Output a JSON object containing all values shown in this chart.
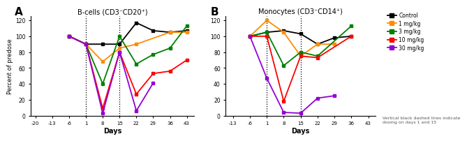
{
  "panel_A": {
    "title": "B-cells (CD3⁻CD20⁺)",
    "xlabel": "Days",
    "ylabel": "Percent of predose",
    "xticks": [
      -20,
      -13,
      -6,
      1,
      8,
      15,
      22,
      29,
      36,
      43
    ],
    "xlim": [
      -22,
      46
    ],
    "ylim": [
      0,
      125
    ],
    "yticks": [
      0,
      20,
      40,
      60,
      80,
      100,
      120
    ],
    "vlines": [
      1,
      15
    ],
    "series": {
      "Control": {
        "color": "#000000",
        "x": [
          -6,
          1,
          8,
          15,
          22,
          29,
          36,
          43
        ],
        "y": [
          100,
          90,
          90,
          90,
          117,
          107,
          105,
          107
        ]
      },
      "1 mg/kg": {
        "color": "#FF8C00",
        "x": [
          -6,
          1,
          8,
          15,
          22,
          36,
          43
        ],
        "y": [
          100,
          90,
          68,
          85,
          90,
          105,
          105
        ]
      },
      "3 mg/kg": {
        "color": "#008000",
        "x": [
          -6,
          1,
          8,
          15,
          22,
          29,
          36,
          43
        ],
        "y": [
          100,
          90,
          40,
          100,
          65,
          77,
          85,
          113
        ]
      },
      "10 mg/kg": {
        "color": "#FF0000",
        "x": [
          -6,
          1,
          8,
          15,
          22,
          29,
          36,
          43
        ],
        "y": [
          100,
          90,
          9,
          80,
          27,
          53,
          56,
          70
        ]
      },
      "30 mg/kg": {
        "color": "#9400D3",
        "x": [
          -6,
          1,
          8,
          15,
          22,
          29
        ],
        "y": [
          100,
          90,
          3,
          80,
          6,
          41
        ]
      }
    }
  },
  "panel_B": {
    "title": "Monocytes (CD3⁻CD14⁺)",
    "xlabel": "Days",
    "ylabel": "",
    "xticks": [
      -13,
      -6,
      1,
      8,
      15,
      22,
      29,
      36,
      43
    ],
    "xlim": [
      -16,
      46
    ],
    "ylim": [
      0,
      125
    ],
    "yticks": [
      0,
      20,
      40,
      60,
      80,
      100,
      120
    ],
    "vlines": [
      1,
      15
    ],
    "series": {
      "Control": {
        "color": "#000000",
        "x": [
          -6,
          1,
          8,
          15,
          22,
          29,
          36
        ],
        "y": [
          100,
          105,
          107,
          103,
          90,
          98,
          100
        ]
      },
      "1 mg/kg": {
        "color": "#FF8C00",
        "x": [
          -6,
          1,
          8,
          15,
          22,
          29
        ],
        "y": [
          100,
          120,
          105,
          75,
          90,
          90
        ]
      },
      "3 mg/kg": {
        "color": "#008000",
        "x": [
          -6,
          1,
          8,
          15,
          22,
          36
        ],
        "y": [
          100,
          105,
          63,
          80,
          75,
          113
        ]
      },
      "10 mg/kg": {
        "color": "#FF0000",
        "x": [
          -6,
          1,
          8,
          15,
          22,
          36
        ],
        "y": [
          100,
          100,
          18,
          75,
          73,
          100
        ]
      },
      "30 mg/kg": {
        "color": "#9400D3",
        "x": [
          -6,
          1,
          8,
          15,
          22,
          29
        ],
        "y": [
          100,
          47,
          4,
          3,
          22,
          25
        ]
      }
    }
  },
  "legend_labels": [
    "Control",
    "1 mg/kg",
    "3 mg/kg",
    "10 mg/kg",
    "30 mg/kg"
  ],
  "legend_colors": [
    "#000000",
    "#FF8C00",
    "#008000",
    "#FF0000",
    "#9400D3"
  ],
  "annotation": "Vertical black dashed lines indicate\ndosing on days 1 and 15",
  "bg_color": "#FFFFFF"
}
